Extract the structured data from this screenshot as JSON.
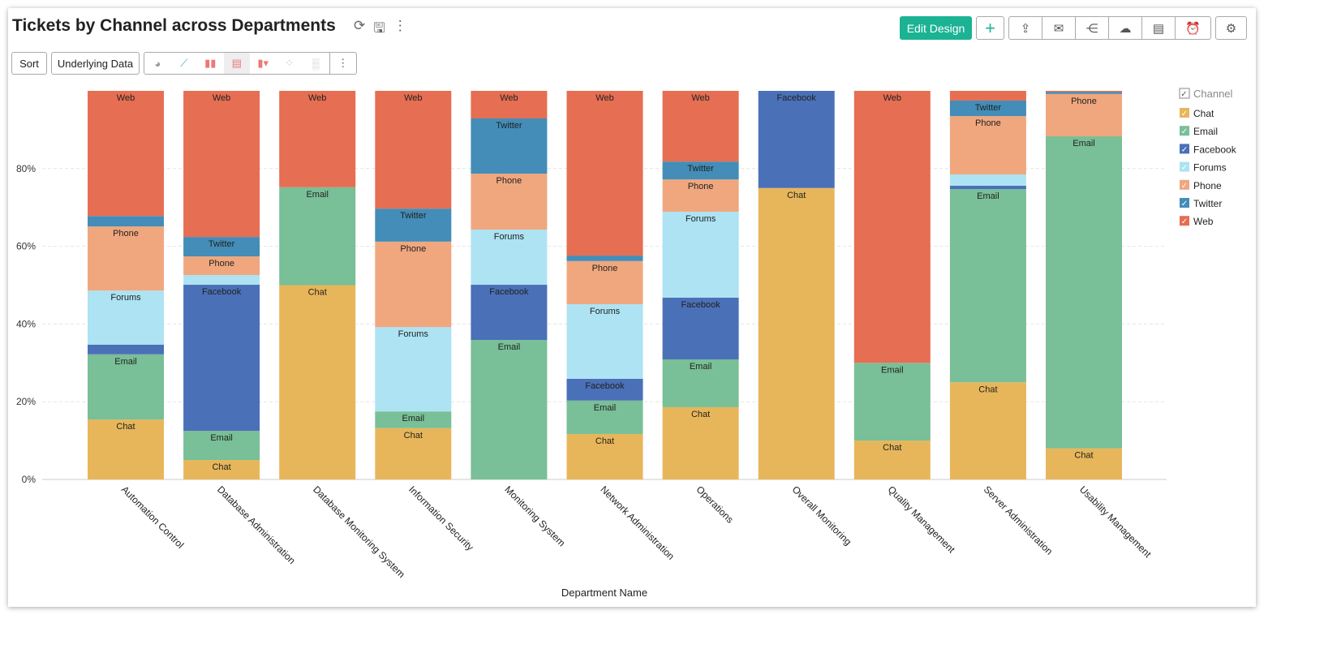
{
  "header": {
    "title": "Tickets by Channel across Departments",
    "edit_design": "Edit Design",
    "sort": "Sort",
    "underlying_data": "Underlying Data"
  },
  "chart_data": {
    "type": "bar",
    "stacked": "percent",
    "title": "Tickets by Channel across Departments",
    "xlabel": "Department Name",
    "ylabel": "",
    "ylim": [
      0,
      100
    ],
    "yticks": [
      "0%",
      "20%",
      "40%",
      "60%",
      "80%"
    ],
    "legend": {
      "title": "Channel",
      "placement": "right"
    },
    "categories": [
      "Automation Control",
      "Database Administration",
      "Database Monitoring System",
      "Information Security",
      "Monitoring System",
      "Network Administration",
      "Operations",
      "Overall Monitoring",
      "Quality Management",
      "Server Administration",
      "Usability Management"
    ],
    "series": [
      {
        "name": "Chat",
        "color": "#E8B65A",
        "values": [
          15.4,
          5.0,
          50,
          13.2,
          0,
          11.7,
          18.6,
          75,
          10,
          25,
          8
        ]
      },
      {
        "name": "Email",
        "color": "#79BF97",
        "values": [
          16.8,
          7.5,
          25.2,
          4.3,
          35.9,
          8.6,
          12.3,
          0,
          20,
          49.7,
          80.3
        ]
      },
      {
        "name": "Facebook",
        "color": "#4A70B8",
        "values": [
          2.5,
          37.6,
          0,
          0,
          14.2,
          5.6,
          15.9,
          25,
          0,
          0.9,
          0
        ]
      },
      {
        "name": "Forums",
        "color": "#ADE3F3",
        "values": [
          13.9,
          2.5,
          0,
          21.7,
          14.2,
          19.2,
          22.1,
          0,
          0,
          2.9,
          0
        ]
      },
      {
        "name": "Phone",
        "color": "#F0A77E",
        "values": [
          16.5,
          4.8,
          0,
          22.0,
          14.4,
          11.1,
          8.3,
          0,
          0,
          15.0,
          10.9
        ]
      },
      {
        "name": "Twitter",
        "color": "#438DB8",
        "values": [
          2.7,
          5.0,
          0,
          8.5,
          14.2,
          1.4,
          4.6,
          0,
          0,
          4.0,
          0.5
        ]
      },
      {
        "name": "Web",
        "color": "#E66E52",
        "values": [
          32.2,
          37.6,
          24.8,
          30.3,
          7.1,
          42.4,
          18.2,
          0,
          70,
          2.5,
          0.3
        ]
      }
    ]
  }
}
